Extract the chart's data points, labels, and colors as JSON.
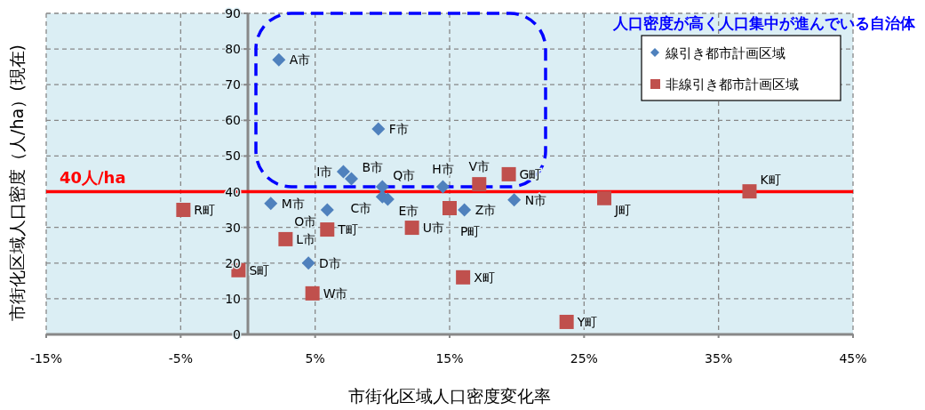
{
  "chart_data": {
    "type": "scatter",
    "xlabel": "市街化区域人口密度変化率",
    "ylabel": "市街化区域人口密度（人/ha）(現在)",
    "xlim": [
      -15,
      45
    ],
    "xticks": [
      {
        "value": -15,
        "label": "-15%"
      },
      {
        "value": -5,
        "label": "-5%"
      },
      {
        "value": 5,
        "label": "5%"
      },
      {
        "value": 15,
        "label": "15%"
      },
      {
        "value": 25,
        "label": "25%"
      },
      {
        "value": 35,
        "label": "35%"
      },
      {
        "value": 45,
        "label": "45%"
      }
    ],
    "ylim": [
      0,
      90
    ],
    "yticks": [
      0,
      10,
      20,
      30,
      40,
      50,
      60,
      70,
      80,
      90
    ],
    "grid": true,
    "legend": "top right",
    "series": [
      {
        "name": "線引き都市計画区域",
        "color": "#4f81bd",
        "marker": "diamond",
        "x": [
          2.3,
          9.7,
          7.1,
          7.7,
          10.0,
          10.0,
          10.4,
          14.5,
          1.7,
          5.9,
          4.5,
          16.1,
          19.8
        ],
        "values": [
          77,
          57.6,
          45.6,
          43.6,
          41.4,
          38.6,
          37.9,
          41.4,
          36.7,
          34.9,
          20.0,
          34.9,
          37.7
        ]
      },
      {
        "name": "非線引き都市計画区域",
        "color": "#c0504d",
        "marker": "square",
        "x": [
          -4.8,
          -0.7,
          2.8,
          5.9,
          4.8,
          12.2,
          15.0,
          17.2,
          19.4,
          26.5,
          37.3,
          16.0,
          23.7
        ],
        "values": [
          34.9,
          18.0,
          26.7,
          29.4,
          11.5,
          29.9,
          35.4,
          42.1,
          44.9,
          38.2,
          40.1,
          16.0,
          3.5
        ]
      }
    ],
    "ref_lines": [
      {
        "axis": "y",
        "value": 40,
        "label": "40人/ha",
        "color": "#ff0000"
      }
    ],
    "annotations": [
      "人口密度が高く人口集中が進んでいる自治体",
      {
        "text": "A市",
        "x": 2.3,
        "y": 77
      },
      {
        "text": "F市",
        "x": 9.7,
        "y": 57.6
      },
      {
        "text": "I市",
        "x": 7.1,
        "y": 45.6
      },
      {
        "text": "B市",
        "x": 7.7,
        "y": 43.6
      },
      {
        "text": "Q市",
        "x": 10.0,
        "y": 41.4
      },
      {
        "text": "C市",
        "x": 10.0,
        "y": 38.6
      },
      {
        "text": "E市",
        "x": 10.4,
        "y": 37.9
      },
      {
        "text": "H市",
        "x": 14.5,
        "y": 41.4
      },
      {
        "text": "M市",
        "x": 1.7,
        "y": 36.7
      },
      {
        "text": "O市",
        "x": 5.9,
        "y": 34.9
      },
      {
        "text": "D市",
        "x": 4.5,
        "y": 20.0
      },
      {
        "text": "Z市",
        "x": 16.1,
        "y": 34.9
      },
      {
        "text": "N市",
        "x": 19.8,
        "y": 37.7
      },
      {
        "text": "R町",
        "x": -4.8,
        "y": 34.9
      },
      {
        "text": "S町",
        "x": -0.7,
        "y": 18.0
      },
      {
        "text": "L市",
        "x": 2.8,
        "y": 26.7
      },
      {
        "text": "T町",
        "x": 5.9,
        "y": 29.4
      },
      {
        "text": "W市",
        "x": 4.8,
        "y": 11.5
      },
      {
        "text": "U市",
        "x": 12.2,
        "y": 29.9
      },
      {
        "text": "P町",
        "x": 15.0,
        "y": 35.4
      },
      {
        "text": "V市",
        "x": 17.2,
        "y": 42.1
      },
      {
        "text": "G町",
        "x": 19.4,
        "y": 44.9
      },
      {
        "text": "J町",
        "x": 26.5,
        "y": 38.2
      },
      {
        "text": "K町",
        "x": 37.3,
        "y": 40.1
      },
      {
        "text": "X町",
        "x": 16.0,
        "y": 16.0
      },
      {
        "text": "Y町",
        "x": 23.7,
        "y": 3.5
      }
    ]
  }
}
